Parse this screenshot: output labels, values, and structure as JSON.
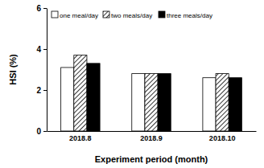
{
  "chart_data": {
    "type": "bar",
    "x_label": "Experiment period (month)",
    "y_label": "HSI (%)",
    "categories": [
      "2018.8",
      "2018.9",
      "2018.10"
    ],
    "series": [
      {
        "name": "one meal/day",
        "color": "#ffffff",
        "values": [
          3.1,
          2.8,
          2.6
        ]
      },
      {
        "name": "two meals/day",
        "color": "#000000",
        "line_style": "hatched",
        "values": [
          3.7,
          2.8,
          2.8
        ]
      },
      {
        "name": "three meals/day",
        "color": "#000000",
        "values": [
          3.3,
          2.8,
          2.6
        ]
      }
    ],
    "ylim": [
      0,
      6
    ],
    "yticks": [
      0,
      2,
      4,
      6
    ],
    "legend": "top-left",
    "grid": false
  }
}
